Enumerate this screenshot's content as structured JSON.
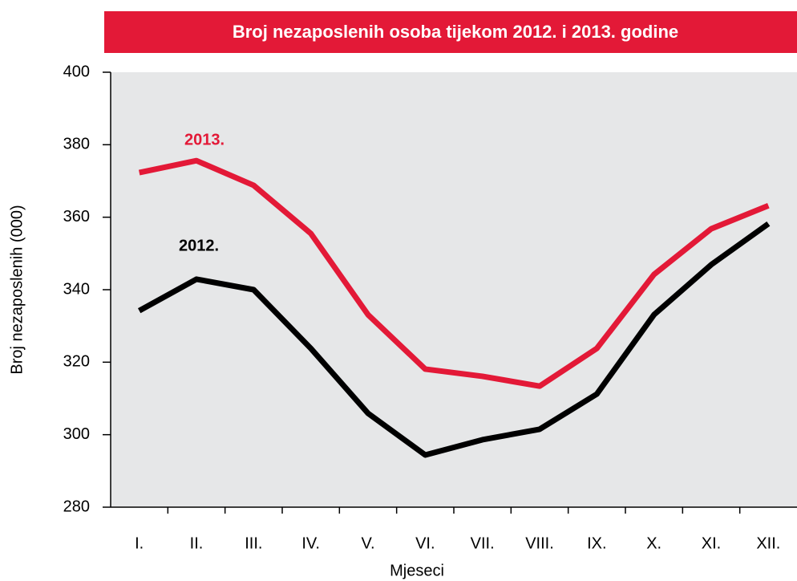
{
  "chart_data": {
    "type": "line",
    "title": "Broj nezaposlenih osoba tijekom 2012. i 2013. godine",
    "x_label": "Mjeseci",
    "y_label": "Broj nezaposlenih (000)",
    "categories": [
      "I.",
      "II.",
      "III.",
      "IV.",
      "V.",
      "VI.",
      "VII.",
      "VIII.",
      "IX.",
      "X.",
      "XI.",
      "XII."
    ],
    "series": [
      {
        "name": "2013.",
        "color": "#e31937",
        "values": [
          372.3,
          375.6,
          368.8,
          355.5,
          333.1,
          318.1,
          316.1,
          313.4,
          323.8,
          344.2,
          356.8,
          363.2
        ]
      },
      {
        "name": "2012.",
        "color": "#000000",
        "values": [
          334.2,
          342.9,
          340.0,
          323.8,
          305.9,
          294.4,
          298.6,
          301.5,
          311.2,
          333.1,
          346.9,
          358.2
        ]
      }
    ],
    "ylim": [
      280,
      400
    ],
    "yticks": [
      280,
      300,
      320,
      340,
      360,
      380,
      400
    ],
    "grid": false
  }
}
